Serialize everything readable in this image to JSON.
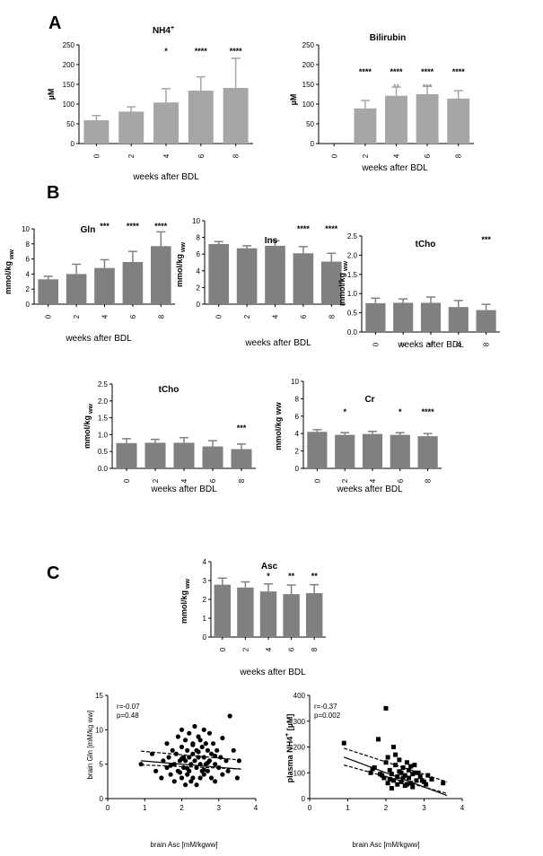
{
  "panels": {
    "A": "A",
    "B": "B",
    "C": "C"
  },
  "colors": {
    "bar_light": "#a6a6a6",
    "bar_dark": "#808080",
    "axis": "#000000"
  },
  "chart_data": [
    {
      "id": "nh4",
      "type": "bar",
      "title": "NH4",
      "title_sup": "+",
      "xlabel": "weeks after BDL",
      "ylabel": "µM",
      "ylim": [
        0,
        250
      ],
      "yticks": [
        "0",
        "50",
        "100",
        "150",
        "200",
        "250"
      ],
      "categories": [
        "0",
        "2",
        "4",
        "6",
        "8"
      ],
      "values": [
        59,
        81,
        104,
        134,
        141
      ],
      "errors": [
        12,
        12,
        35,
        35,
        75
      ],
      "sig": [
        "",
        "",
        "*",
        "****",
        "****"
      ],
      "sig2": [
        "",
        "",
        "",
        "",
        ""
      ],
      "color": "light"
    },
    {
      "id": "bilirubin",
      "type": "bar",
      "title": "Bilirubin",
      "xlabel": "weeks after BDL",
      "ylabel": "µM",
      "ylim": [
        0,
        250
      ],
      "yticks": [
        "0",
        "50",
        "100",
        "150",
        "200",
        "250"
      ],
      "categories": [
        "0",
        "2",
        "4",
        "6",
        "8"
      ],
      "values": [
        0,
        89,
        121,
        125,
        114
      ],
      "errors": [
        0,
        20,
        22,
        20,
        20
      ],
      "sig": [
        "",
        "****",
        "****",
        "****",
        "****"
      ],
      "sig2": [
        "",
        "",
        "**",
        "***",
        ""
      ],
      "color": "light"
    },
    {
      "id": "gln",
      "type": "bar",
      "title": "Gln",
      "xlabel": "weeks after BDL",
      "ylabel": "mmol/kg",
      "ylabel_sub": "ww",
      "ylim": [
        0,
        10
      ],
      "yticks": [
        "0",
        "2",
        "4",
        "6",
        "8",
        "10"
      ],
      "categories": [
        "0",
        "2",
        "4",
        "6",
        "8"
      ],
      "values": [
        3.3,
        4.0,
        4.8,
        5.6,
        7.7
      ],
      "errors": [
        0.4,
        1.3,
        1.1,
        1.4,
        1.9
      ],
      "sig": [
        "",
        "",
        "***",
        "****",
        "****"
      ],
      "sig2": [
        "",
        "",
        "",
        "",
        ""
      ],
      "color": "dark"
    },
    {
      "id": "ins",
      "type": "bar",
      "title": "Ins",
      "xlabel": "weeks after BDL",
      "ylabel": "mmol/kg",
      "ylabel_sub": "ww",
      "ylim": [
        0,
        10
      ],
      "yticks": [
        "0",
        "2",
        "4",
        "6",
        "8",
        "10"
      ],
      "categories": [
        "0",
        "2",
        "4",
        "6",
        "8"
      ],
      "values": [
        7.2,
        6.7,
        7.0,
        6.1,
        5.1
      ],
      "errors": [
        0.3,
        0.3,
        0.6,
        0.8,
        1.0
      ],
      "sig": [
        "",
        "",
        "",
        "****",
        "****"
      ],
      "sig2": [
        "",
        "",
        "",
        "",
        ""
      ],
      "color": "dark"
    },
    {
      "id": "tcho1",
      "type": "bar",
      "title": "tCho",
      "xlabel": "weeks after BDL",
      "ylabel": "mmol/kg",
      "ylabel_sub": "ww",
      "ylim": [
        0,
        2.5
      ],
      "yticks": [
        "0.0",
        "0.5",
        "1.0",
        "1.5",
        "2.0",
        "2.5"
      ],
      "categories": [
        "0",
        "2",
        "4",
        "6",
        "8"
      ],
      "values": [
        0.75,
        0.76,
        0.76,
        0.65,
        0.57
      ],
      "errors": [
        0.13,
        0.1,
        0.15,
        0.17,
        0.15
      ],
      "sig": [
        "",
        "",
        "",
        "",
        "***"
      ],
      "sig2": [
        "",
        "",
        "",
        "",
        ""
      ],
      "color": "dark"
    },
    {
      "id": "tcho2",
      "type": "bar",
      "title": "tCho",
      "xlabel": "weeks after BDL",
      "ylabel": "mmol/kg",
      "ylabel_sub": "ww",
      "ylim": [
        0,
        2.5
      ],
      "yticks": [
        "0.0",
        "0.5",
        "1.0",
        "1.5",
        "2.0",
        "2.5"
      ],
      "categories": [
        "0",
        "2",
        "4",
        "6",
        "8"
      ],
      "values": [
        0.75,
        0.76,
        0.76,
        0.65,
        0.57
      ],
      "errors": [
        0.13,
        0.1,
        0.15,
        0.17,
        0.15
      ],
      "sig": [
        "",
        "",
        "",
        "",
        "***"
      ],
      "sig2": [
        "",
        "",
        "",
        "",
        ""
      ],
      "color": "dark"
    },
    {
      "id": "cr",
      "type": "bar",
      "title": "Cr",
      "xlabel": "weeks after BDL",
      "ylabel": "mmol/kg ww",
      "ylim": [
        0,
        10
      ],
      "yticks": [
        "0",
        "2",
        "4",
        "6",
        "8",
        "10"
      ],
      "categories": [
        "0",
        "2",
        "4",
        "6",
        "8"
      ],
      "values": [
        4.2,
        3.85,
        3.95,
        3.85,
        3.7
      ],
      "errors": [
        0.25,
        0.25,
        0.3,
        0.25,
        0.3
      ],
      "sig": [
        "",
        "*",
        "",
        "*",
        "****"
      ],
      "sig2": [
        "",
        "",
        "",
        "",
        ""
      ],
      "color": "dark"
    },
    {
      "id": "asc",
      "type": "bar",
      "title": "Asc",
      "xlabel": "weeks after BDL",
      "ylabel": "mmol/kg",
      "ylabel_sub": "ww",
      "ylim": [
        0,
        4
      ],
      "yticks": [
        "0",
        "1",
        "2",
        "3",
        "4"
      ],
      "categories": [
        "0",
        "2",
        "4",
        "6",
        "8"
      ],
      "values": [
        2.78,
        2.63,
        2.42,
        2.28,
        2.33
      ],
      "errors": [
        0.35,
        0.3,
        0.4,
        0.48,
        0.45
      ],
      "sig": [
        "",
        "",
        "*",
        "**",
        "**"
      ],
      "sig2": [
        "",
        "",
        "",
        "",
        ""
      ],
      "color": "dark"
    },
    {
      "id": "scatter_gln",
      "type": "scatter",
      "marker": "circle",
      "xlabel": "brain Asc [mM/kgww]",
      "ylabel": "brain Gln  [mM/kg ww]",
      "xlim": [
        0,
        4
      ],
      "ylim": [
        0,
        15
      ],
      "xticks": [
        "0",
        "1",
        "2",
        "3",
        "4"
      ],
      "yticks": [
        "0",
        "5",
        "10",
        "15"
      ],
      "stat_r": "r=-0.07",
      "stat_p": "p=0.48",
      "fit": {
        "slope": -0.45,
        "intercept": 5.9,
        "x_range": [
          0.9,
          3.6
        ]
      },
      "ci_upper": {
        "y_at_start": 6.9,
        "y_at_end": 5.6
      },
      "ci_lower": {
        "y_at_start": 4.9,
        "y_at_end": 4.3
      },
      "x": [
        0.9,
        1.2,
        1.3,
        1.45,
        1.5,
        1.6,
        1.6,
        1.65,
        1.7,
        1.75,
        1.8,
        1.8,
        1.85,
        1.9,
        1.9,
        1.95,
        2.0,
        2.0,
        2.0,
        2.05,
        2.05,
        2.1,
        2.1,
        2.1,
        2.15,
        2.15,
        2.2,
        2.2,
        2.2,
        2.25,
        2.25,
        2.3,
        2.3,
        2.3,
        2.35,
        2.35,
        2.4,
        2.4,
        2.4,
        2.45,
        2.45,
        2.5,
        2.5,
        2.5,
        2.55,
        2.55,
        2.6,
        2.6,
        2.6,
        2.65,
        2.65,
        2.7,
        2.7,
        2.75,
        2.75,
        2.8,
        2.8,
        2.85,
        2.9,
        2.9,
        2.95,
        3.0,
        3.05,
        3.1,
        3.2,
        3.25,
        3.3,
        3.4,
        3.5,
        3.55,
        1.7,
        2.0,
        2.3,
        2.6,
        2.9,
        3.1,
        1.95,
        2.45,
        2.7,
        2.15
      ],
      "y": [
        5.0,
        6.5,
        4.0,
        3.0,
        5.5,
        8.0,
        4.5,
        6.0,
        3.5,
        7.0,
        5.0,
        2.5,
        6.5,
        9.0,
        4.0,
        5.5,
        10.0,
        7.5,
        3.0,
        6.0,
        4.5,
        8.5,
        5.5,
        2.0,
        7.0,
        3.5,
        9.5,
        6.0,
        4.0,
        5.0,
        2.5,
        8.0,
        6.5,
        3.0,
        10.5,
        5.5,
        7.0,
        4.5,
        2.0,
        9.0,
        6.0,
        8.5,
        5.0,
        3.0,
        7.5,
        4.0,
        10.0,
        6.0,
        3.5,
        8.0,
        5.0,
        7.0,
        4.0,
        9.5,
        5.5,
        6.5,
        3.0,
        8.0,
        5.0,
        2.5,
        7.0,
        4.5,
        6.0,
        3.5,
        5.5,
        4.0,
        12.0,
        7.0,
        3.0,
        5.5,
        4.8,
        5.8,
        7.8,
        4.2,
        6.2,
        8.8,
        3.8,
        6.8,
        5.2,
        4.4
      ]
    },
    {
      "id": "scatter_nh4",
      "type": "scatter",
      "marker": "square",
      "xlabel": "brain Asc [mM/kgww]",
      "ylabel": "plasma NH4",
      "ylabel_sup": "+",
      "ylabel_tail": " [µM]",
      "xlim": [
        0,
        4
      ],
      "ylim": [
        0,
        400
      ],
      "xticks": [
        "0",
        "1",
        "2",
        "3",
        "4"
      ],
      "yticks": [
        "0",
        "100",
        "200",
        "300",
        "400"
      ],
      "stat_r": "r=-0.37",
      "stat_p": "p=0.002",
      "fit": {
        "slope": -55,
        "intercept": 210,
        "x_range": [
          0.9,
          3.6
        ]
      },
      "ci_upper": {
        "y_at_start": 195,
        "y_at_end": 65
      },
      "ci_lower": {
        "y_at_start": 130,
        "y_at_end": 20
      },
      "x": [
        0.9,
        1.6,
        1.7,
        1.8,
        1.9,
        1.95,
        2.0,
        2.0,
        2.05,
        2.1,
        2.1,
        2.15,
        2.2,
        2.2,
        2.25,
        2.3,
        2.3,
        2.35,
        2.4,
        2.4,
        2.45,
        2.5,
        2.5,
        2.55,
        2.6,
        2.6,
        2.65,
        2.7,
        2.7,
        2.75,
        2.8,
        2.85,
        2.9,
        3.0,
        3.1,
        3.2,
        3.5,
        1.65,
        2.05,
        2.35,
        2.65,
        2.95,
        2.25,
        2.55,
        1.85,
        2.15,
        2.45,
        2.75,
        3.05
      ],
      "y": [
        215,
        100,
        120,
        230,
        90,
        80,
        350,
        140,
        60,
        110,
        75,
        95,
        200,
        70,
        130,
        85,
        55,
        150,
        100,
        65,
        120,
        90,
        50,
        140,
        80,
        110,
        60,
        95,
        45,
        130,
        70,
        100,
        85,
        65,
        90,
        75,
        60,
        115,
        160,
        105,
        125,
        70,
        170,
        55,
        95,
        40,
        80,
        100,
        55
      ]
    }
  ]
}
